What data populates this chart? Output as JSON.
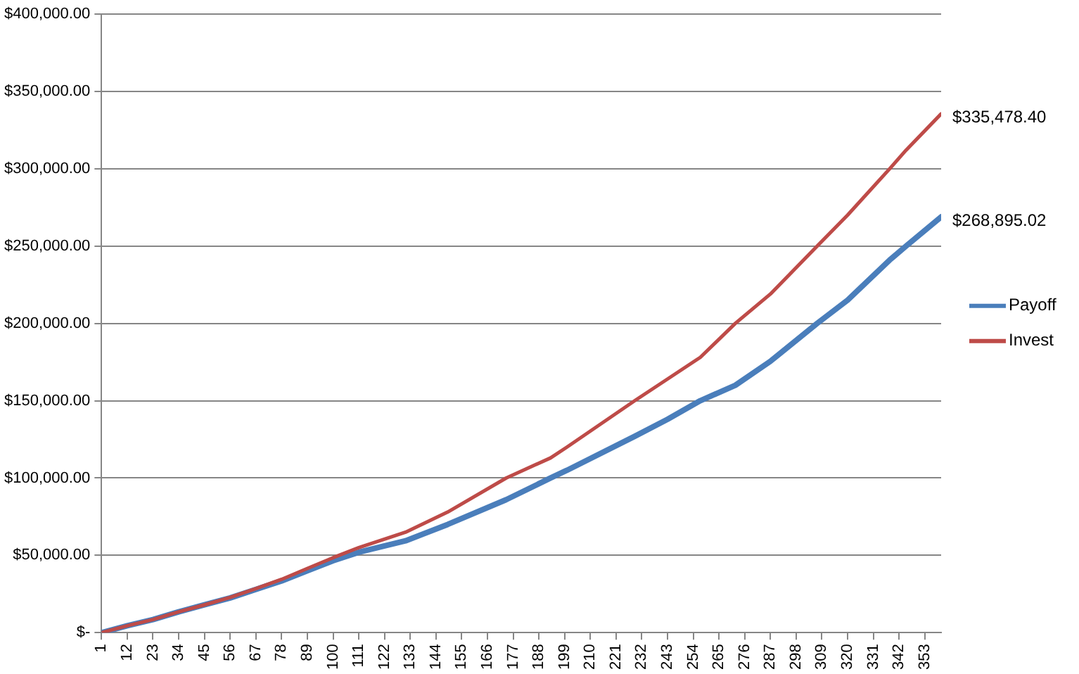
{
  "chart_data": {
    "type": "line",
    "x": [
      1,
      12,
      23,
      34,
      45,
      56,
      67,
      78,
      89,
      100,
      111,
      131,
      149,
      174,
      193,
      200,
      229,
      243,
      257,
      272,
      287,
      307,
      320,
      338,
      345,
      360
    ],
    "series": [
      {
        "name": "Payoff",
        "color": "#4a7ebb",
        "values": [
          0,
          4500,
          8500,
          13500,
          18000,
          22500,
          28000,
          33500,
          40000,
          46500,
          52000,
          59400,
          70000,
          86000,
          100000,
          105000,
          127000,
          138000,
          150000,
          160000,
          175500,
          200000,
          215000,
          241000,
          250000,
          268895.02
        ],
        "value_labels": [
          null,
          null,
          null,
          null,
          null,
          null,
          null,
          null,
          null,
          null,
          null,
          null,
          null,
          null,
          null,
          null,
          null,
          null,
          null,
          null,
          null,
          null,
          null,
          null,
          null,
          "$268,895.02"
        ]
      },
      {
        "name": "Invest",
        "color": "#be4b48",
        "values": [
          0,
          4500,
          8500,
          13500,
          18000,
          22800,
          28500,
          34500,
          41500,
          48500,
          55000,
          65000,
          78000,
          100000,
          113000,
          120000,
          150000,
          164000,
          178000,
          200000,
          219000,
          250000,
          270000,
          300000,
          312000,
          335478.4
        ],
        "value_labels": [
          null,
          null,
          null,
          null,
          null,
          null,
          null,
          null,
          null,
          null,
          null,
          null,
          null,
          null,
          null,
          null,
          null,
          null,
          null,
          null,
          null,
          null,
          null,
          null,
          null,
          "$335,478.40"
        ]
      }
    ],
    "xlim": [
      1,
      360
    ],
    "xticks": [
      1,
      12,
      23,
      34,
      45,
      56,
      67,
      78,
      89,
      100,
      111,
      122,
      133,
      144,
      155,
      166,
      177,
      188,
      199,
      210,
      221,
      232,
      243,
      254,
      265,
      276,
      287,
      298,
      309,
      320,
      331,
      342,
      353
    ],
    "ylim": [
      0,
      400000
    ],
    "yticks": [
      {
        "value": 0,
        "label": "$-"
      },
      {
        "value": 50000,
        "label": "$50,000.00"
      },
      {
        "value": 100000,
        "label": "$100,000.00"
      },
      {
        "value": 150000,
        "label": "$150,000.00"
      },
      {
        "value": 200000,
        "label": "$200,000.00"
      },
      {
        "value": 250000,
        "label": "$250,000.00"
      },
      {
        "value": 300000,
        "label": "$300,000.00"
      },
      {
        "value": 350000,
        "label": "$350,000.00"
      },
      {
        "value": 400000,
        "label": "$400,000.00"
      }
    ],
    "grid": "y",
    "legend": "right",
    "marker": "none",
    "line_style": "solid"
  }
}
